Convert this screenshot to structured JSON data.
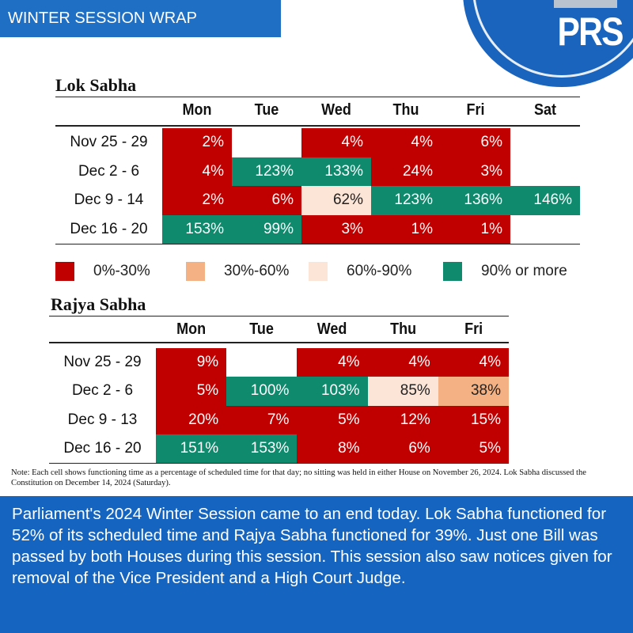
{
  "banner": "WINTER SESSION WRAP",
  "logo": "PRS",
  "tables": [
    {
      "title": "Lok Sabha",
      "columns": [
        "Mon",
        "Tue",
        "Wed",
        "Thu",
        "Fri",
        "Sat"
      ],
      "rows": [
        {
          "label": "Nov 25 - 29",
          "cells": [
            {
              "text": "2%",
              "color": "#c00000"
            },
            null,
            {
              "text": "4%",
              "color": "#c00000"
            },
            {
              "text": "4%",
              "color": "#c00000"
            },
            {
              "text": "6%",
              "color": "#c00000"
            },
            null
          ]
        },
        {
          "label": "Dec 2 - 6",
          "cells": [
            {
              "text": "4%",
              "color": "#c00000"
            },
            {
              "text": "123%",
              "color": "#0f8a6c"
            },
            {
              "text": "133%",
              "color": "#0f8a6c"
            },
            {
              "text": "24%",
              "color": "#c00000"
            },
            {
              "text": "3%",
              "color": "#c00000"
            },
            null
          ]
        },
        {
          "label": "Dec 9 - 14",
          "cells": [
            {
              "text": "2%",
              "color": "#c00000"
            },
            {
              "text": "6%",
              "color": "#c00000"
            },
            {
              "text": "62%",
              "color": "#fce4d6"
            },
            {
              "text": "123%",
              "color": "#0f8a6c"
            },
            {
              "text": "136%",
              "color": "#0f8a6c"
            },
            {
              "text": "146%",
              "color": "#0f8a6c"
            }
          ]
        },
        {
          "label": "Dec 16 - 20",
          "cells": [
            {
              "text": "153%",
              "color": "#0f8a6c"
            },
            {
              "text": "99%",
              "color": "#0f8a6c"
            },
            {
              "text": "3%",
              "color": "#c00000"
            },
            {
              "text": "1%",
              "color": "#c00000"
            },
            {
              "text": "1%",
              "color": "#c00000"
            },
            null
          ]
        }
      ]
    },
    {
      "title": "Rajya Sabha",
      "columns": [
        "Mon",
        "Tue",
        "Wed",
        "Thu",
        "Fri"
      ],
      "rows": [
        {
          "label": "Nov 25 - 29",
          "cells": [
            {
              "text": "9%",
              "color": "#c00000"
            },
            null,
            {
              "text": "4%",
              "color": "#c00000"
            },
            {
              "text": "4%",
              "color": "#c00000"
            },
            {
              "text": "4%",
              "color": "#c00000"
            }
          ]
        },
        {
          "label": "Dec 2 - 6",
          "cells": [
            {
              "text": "5%",
              "color": "#c00000"
            },
            {
              "text": "100%",
              "color": "#0f8a6c"
            },
            {
              "text": "103%",
              "color": "#0f8a6c"
            },
            {
              "text": "85%",
              "color": "#fce4d6"
            },
            {
              "text": "38%",
              "color": "#f4b183"
            }
          ]
        },
        {
          "label": "Dec 9 - 13",
          "cells": [
            {
              "text": "20%",
              "color": "#c00000"
            },
            {
              "text": "7%",
              "color": "#c00000"
            },
            {
              "text": "5%",
              "color": "#c00000"
            },
            {
              "text": "12%",
              "color": "#c00000"
            },
            {
              "text": "15%",
              "color": "#c00000"
            }
          ]
        },
        {
          "label": "Dec 16 - 20",
          "cells": [
            {
              "text": "151%",
              "color": "#0f8a6c"
            },
            {
              "text": "153%",
              "color": "#0f8a6c"
            },
            {
              "text": "8%",
              "color": "#c00000"
            },
            {
              "text": "6%",
              "color": "#c00000"
            },
            {
              "text": "5%",
              "color": "#c00000"
            }
          ]
        }
      ]
    }
  ],
  "legend": [
    {
      "label": "0%-30%",
      "color": "#c00000"
    },
    {
      "label": "30%-60%",
      "color": "#f4b183"
    },
    {
      "label": "60%-90%",
      "color": "#fce4d6"
    },
    {
      "label": "90% or more",
      "color": "#0f8a6c"
    }
  ],
  "note": "Note: Each cell shows functioning time as a percentage of scheduled time for that day; no sitting was held in either House on November 26, 2024.  Lok Sabha discussed the Constitution on December 14, 2024 (Saturday).",
  "summary": "Parliament's 2024 Winter Session came to an end today. Lok Sabha functioned for 52% of its scheduled time and Rajya Sabha functioned for 39%. Just one Bill was passed by both Houses during this session. This session also saw notices given for removal of the Vice President and a High Court Judge."
}
